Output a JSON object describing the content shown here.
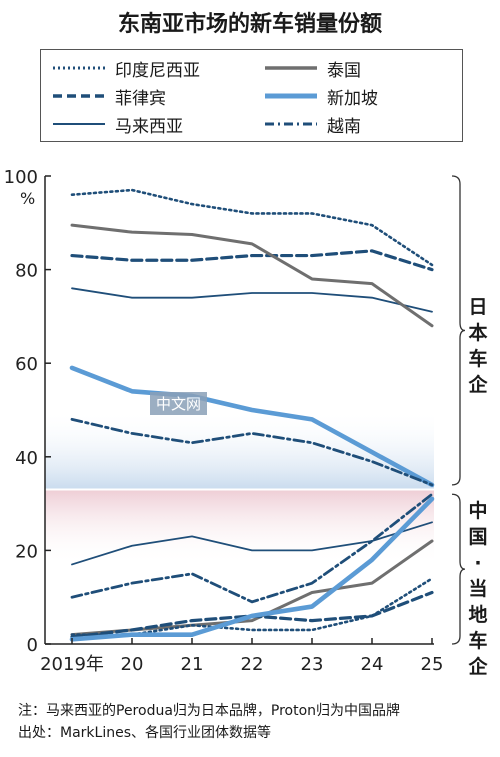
{
  "chart_data": {
    "type": "line",
    "title": "东南亚市场的新车销量份额",
    "ylabel": "%",
    "ylim": [
      0,
      100
    ],
    "yticks": [
      0,
      20,
      40,
      60,
      80,
      100
    ],
    "x": [
      "2019年",
      "20",
      "21",
      "22",
      "23",
      "24",
      "25"
    ],
    "regions": [
      {
        "name": "日本车企",
        "y_from": 33,
        "y_to": 100
      },
      {
        "name": "中国·当地车企",
        "y_from": 0,
        "y_to": 33
      }
    ],
    "series": [
      {
        "name": "印度尼西亚",
        "group": "japan",
        "style": "dotted",
        "color": "#1f4e79",
        "values": [
          96,
          97,
          94,
          92,
          92,
          89.5,
          81
        ]
      },
      {
        "name": "菲律宾",
        "group": "japan",
        "style": "dashed",
        "color": "#1f4e79",
        "values": [
          83,
          82,
          82,
          83,
          83,
          84,
          80
        ]
      },
      {
        "name": "马来西亚",
        "group": "japan",
        "style": "solid-thin",
        "color": "#1f4e79",
        "values": [
          76,
          74,
          74,
          75,
          75,
          74,
          71
        ]
      },
      {
        "name": "泰国",
        "group": "japan",
        "style": "solid-gray",
        "color": "#6f6f6f",
        "values": [
          89.5,
          88,
          87.5,
          85.5,
          78,
          77,
          68
        ]
      },
      {
        "name": "新加坡",
        "group": "japan",
        "style": "solid-thick",
        "color": "#5b9bd5",
        "values": [
          59,
          54,
          53,
          50,
          48,
          41,
          34
        ]
      },
      {
        "name": "越南",
        "group": "japan",
        "style": "dashdot",
        "color": "#1f4e79",
        "values": [
          48,
          45,
          43,
          45,
          43,
          39,
          34
        ]
      },
      {
        "name": "马来西亚",
        "group": "china",
        "style": "solid-thin",
        "color": "#1f4e79",
        "values": [
          17,
          21,
          23,
          20,
          20,
          22,
          26
        ]
      },
      {
        "name": "越南",
        "group": "china",
        "style": "dashdot",
        "color": "#1f4e79",
        "values": [
          10,
          13,
          15,
          9,
          13,
          22,
          32
        ]
      },
      {
        "name": "泰国",
        "group": "china",
        "style": "solid-gray",
        "color": "#6f6f6f",
        "values": [
          2,
          3,
          4,
          5,
          11,
          13,
          22
        ]
      },
      {
        "name": "菲律宾",
        "group": "china",
        "style": "dashed",
        "color": "#1f4e79",
        "values": [
          1.5,
          3,
          5,
          6,
          5,
          6,
          11
        ]
      },
      {
        "name": "印度尼西亚",
        "group": "china",
        "style": "dotted",
        "color": "#1f4e79",
        "values": [
          2,
          2,
          4,
          3,
          3,
          6,
          14
        ]
      },
      {
        "name": "新加坡",
        "group": "china",
        "style": "solid-thick",
        "color": "#5b9bd5",
        "values": [
          1,
          2,
          2,
          6,
          8,
          18,
          31
        ]
      }
    ]
  },
  "legend": [
    {
      "label": "印度尼西亚",
      "style": "dotted"
    },
    {
      "label": "泰国",
      "style": "solid-gray"
    },
    {
      "label": "菲律宾",
      "style": "dashed"
    },
    {
      "label": "新加坡",
      "style": "solid-thick"
    },
    {
      "label": "马来西亚",
      "style": "solid-thin"
    },
    {
      "label": "越南",
      "style": "dashdot"
    }
  ],
  "side_labels": {
    "japan": "日本车企",
    "china": "中国·当地车企"
  },
  "watermark": "中文网",
  "note": {
    "line1": "注：马来西亚的Perodua归为日本品牌，Proton归为中国品牌",
    "line2": "出处：MarkLines、各国行业团体数据等"
  },
  "colors": {
    "dark": "#1f4e79",
    "gray": "#6f6f6f",
    "light": "#5b9bd5",
    "band_blue": "#d9e6f2",
    "band_red": "#f2d9de"
  }
}
